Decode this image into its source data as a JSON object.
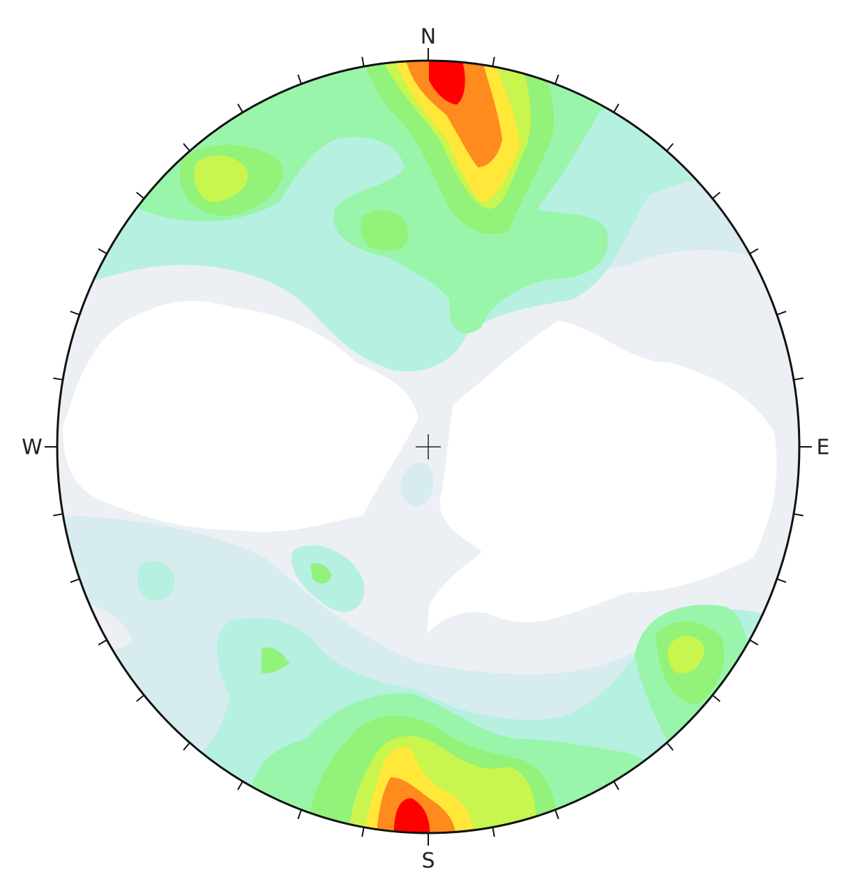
{
  "compass": {
    "north": "N",
    "south": "S",
    "east": "E",
    "west": "W"
  }
}
